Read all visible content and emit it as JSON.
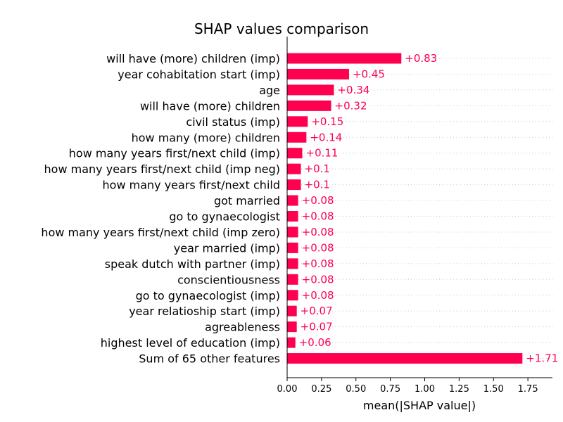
{
  "chart_data": {
    "type": "bar",
    "orientation": "horizontal",
    "title": "SHAP values comparison",
    "xlabel": "mean(|SHAP value|)",
    "ylabel": "",
    "xlim": [
      0,
      1.9
    ],
    "xticks": [
      "0.00",
      "0.25",
      "0.50",
      "0.75",
      "1.00",
      "1.25",
      "1.50",
      "1.75"
    ],
    "grid": "horizontal dotted guide lines",
    "bar_color": "#ff0051",
    "categories": [
      "will have (more) children (imp)",
      "year cohabitation start (imp)",
      "age",
      "will have (more) children",
      "civil status (imp)",
      "how many (more) children",
      "how many years first/next child (imp)",
      "how many years first/next child (imp neg)",
      "how many years first/next child",
      "got married",
      "go to gynaecologist",
      "how many years first/next child (imp zero)",
      "year married (imp)",
      "speak dutch with partner (imp)",
      "conscientiousness",
      "go to gynaecologist (imp)",
      "year relatioship start (imp)",
      "agreableness",
      "highest level of education (imp)",
      "Sum of 65 other features"
    ],
    "values": [
      0.83,
      0.45,
      0.34,
      0.32,
      0.15,
      0.14,
      0.11,
      0.1,
      0.1,
      0.08,
      0.08,
      0.08,
      0.08,
      0.08,
      0.08,
      0.08,
      0.07,
      0.07,
      0.06,
      1.71
    ],
    "value_labels": [
      "+0.83",
      "+0.45",
      "+0.34",
      "+0.32",
      "+0.15",
      "+0.14",
      "+0.11",
      "+0.1",
      "+0.1",
      "+0.08",
      "+0.08",
      "+0.08",
      "+0.08",
      "+0.08",
      "+0.08",
      "+0.08",
      "+0.07",
      "+0.07",
      "+0.06",
      "+1.71"
    ]
  }
}
